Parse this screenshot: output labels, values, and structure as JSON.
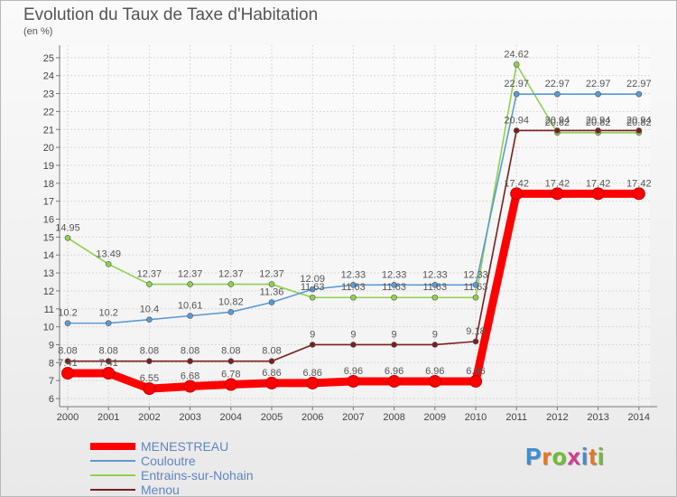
{
  "header": {
    "title": "Evolution du Taux de Taxe d'Habitation",
    "subtitle": "(en %)"
  },
  "logo": {
    "text": "Proxiti",
    "colors": [
      "#3a8fd8",
      "#e8771e",
      "#6cbf2a",
      "#d43b8b",
      "#3a8fd8",
      "#e8771e",
      "#6cbf2a"
    ]
  },
  "chart_data": {
    "type": "line",
    "x": [
      "2000",
      "2001",
      "2002",
      "2003",
      "2004",
      "2005",
      "2006",
      "2007",
      "2008",
      "2009",
      "2010",
      "2011",
      "2012",
      "2013",
      "2014"
    ],
    "ylim": [
      6,
      25
    ],
    "yticks": [
      6,
      7,
      8,
      9,
      10,
      11,
      12,
      13,
      14,
      15,
      16,
      17,
      18,
      19,
      20,
      21,
      22,
      23,
      24,
      25
    ],
    "grid": true,
    "legend_position": "bottom-left",
    "series": [
      {
        "name": "MENESTREAU",
        "color": "#ff0000",
        "values": [
          7.41,
          7.41,
          6.55,
          6.68,
          6.78,
          6.86,
          6.86,
          6.96,
          6.96,
          6.96,
          6.96,
          17.42,
          17.42,
          17.42,
          17.42
        ],
        "labels": [
          "7.41",
          "7.41",
          "6.55",
          "6.68",
          "6.78",
          "6.86",
          "6.86",
          "6.96",
          "6.96",
          "6.96",
          "6.96",
          "17.42",
          "17.42",
          "17.42",
          "17.42"
        ]
      },
      {
        "name": "Couloutre",
        "color": "#5b9bd5",
        "values": [
          10.2,
          10.2,
          10.4,
          10.61,
          10.82,
          11.36,
          12.09,
          12.33,
          12.33,
          12.33,
          12.33,
          22.97,
          22.97,
          22.97,
          22.97
        ],
        "labels": [
          "10.2",
          "10.2",
          "10.4",
          "10.61",
          "10.82",
          "11.36",
          "12.09",
          "12.33",
          "12.33",
          "12.33",
          "12.33",
          "22.97",
          "22.97",
          "22.97",
          "22.97"
        ]
      },
      {
        "name": "Entrains-sur-Nohain",
        "color": "#8fd14f",
        "values": [
          14.95,
          13.49,
          12.37,
          12.37,
          12.37,
          12.37,
          11.63,
          11.63,
          11.63,
          11.63,
          11.63,
          24.62,
          20.82,
          20.82,
          20.82
        ],
        "labels": [
          "14.95",
          "13.49",
          "12.37",
          "12.37",
          "12.37",
          "12.37",
          "11.63",
          "11.63",
          "11.63",
          "11.63",
          "11.63",
          "24.62",
          "20.82",
          "20.82",
          "20.82"
        ]
      },
      {
        "name": "Menou",
        "color": "#7a1f1f",
        "values": [
          8.08,
          8.08,
          8.08,
          8.08,
          8.08,
          8.08,
          9,
          9,
          9,
          9,
          9.18,
          20.94,
          20.94,
          20.94,
          20.94
        ],
        "labels": [
          "8.08",
          "8.08",
          "8.08",
          "8.08",
          "8.08",
          "8.08",
          "9",
          "9",
          "9",
          "9",
          "9.18",
          "20.94",
          "20.94",
          "20.94",
          "20.94"
        ]
      }
    ]
  }
}
